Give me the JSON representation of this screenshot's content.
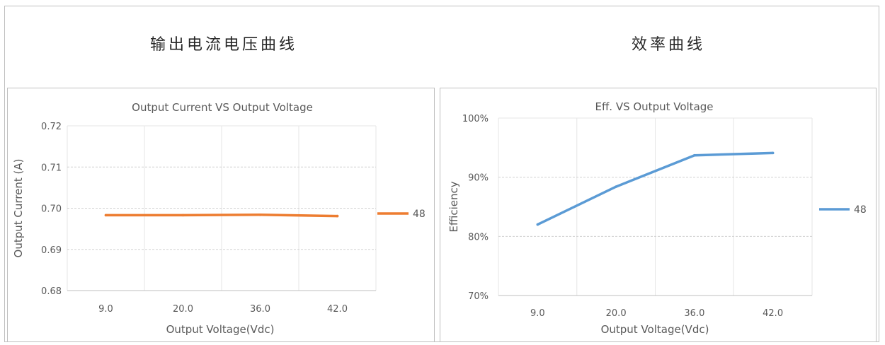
{
  "sections": {
    "left_title": "输出电流电压曲线",
    "right_title": "效率曲线"
  },
  "chart_data": [
    {
      "type": "line",
      "title": "Output Current VS Output Voltage",
      "xlabel": "Output Voltage(Vdc)",
      "ylabel": "Output Current (A)",
      "categories": [
        "9.0",
        "20.0",
        "36.0",
        "42.0"
      ],
      "series": [
        {
          "name": "48",
          "values": [
            0.6983,
            0.6983,
            0.6984,
            0.6981
          ],
          "color": "#ED7D31"
        }
      ],
      "ylim": [
        0.68,
        0.72
      ],
      "yticks": [
        0.68,
        0.69,
        0.7,
        0.71,
        0.72
      ],
      "ytick_labels": [
        "0.68",
        "0.69",
        "0.70",
        "0.71",
        "0.72"
      ],
      "grid": true,
      "legend": "right"
    },
    {
      "type": "line",
      "title": "Eff. VS Output Voltage",
      "xlabel": "Output Voltage(Vdc)",
      "ylabel": "Efficiency",
      "categories": [
        "9.0",
        "20.0",
        "36.0",
        "42.0"
      ],
      "series": [
        {
          "name": "48",
          "values": [
            0.82,
            0.884,
            0.937,
            0.941
          ],
          "color": "#5B9BD5"
        }
      ],
      "ylim": [
        0.7,
        1.0
      ],
      "yticks": [
        0.7,
        0.8,
        0.9,
        1.0
      ],
      "ytick_labels": [
        "70%",
        "80%",
        "90%",
        "100%"
      ],
      "grid": true,
      "legend": "right"
    }
  ]
}
